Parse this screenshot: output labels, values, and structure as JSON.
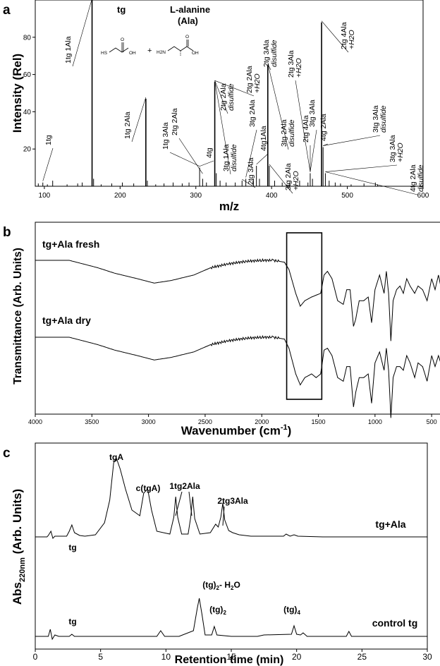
{
  "panels": {
    "a": {
      "letter": "a"
    },
    "b": {
      "letter": "b"
    },
    "c": {
      "letter": "c"
    }
  },
  "chart_data": [
    {
      "panel": "a",
      "type": "bar",
      "xlabel": "m/z",
      "ylabel": "Intensity (Rel)",
      "xlim": [
        88,
        600
      ],
      "ylim": [
        0,
        100
      ],
      "xticks": [
        100,
        200,
        300,
        400,
        500,
        600
      ],
      "yticks": [
        20,
        40,
        60,
        80
      ],
      "header": {
        "tg": "tg",
        "ala": "L-alanine",
        "ala_abbr": "(Ala)",
        "plus": "+"
      },
      "structure_labels": {
        "hs": "HS",
        "oh1": "OH",
        "o1": "O",
        "h2n": "H2N",
        "oh2": "OH",
        "o2": "O"
      },
      "peaks": [
        {
          "x": 92,
          "y": 1.5
        },
        {
          "x": 98,
          "y": 2
        },
        {
          "x": 104,
          "y": 1
        },
        {
          "x": 111,
          "y": 3
        },
        {
          "x": 130,
          "y": 1
        },
        {
          "x": 144,
          "y": 1.5
        },
        {
          "x": 150,
          "y": 2
        },
        {
          "x": 163,
          "y": 100
        },
        {
          "x": 165,
          "y": 4
        },
        {
          "x": 175,
          "y": 1
        },
        {
          "x": 189,
          "y": 1.5
        },
        {
          "x": 203,
          "y": 2
        },
        {
          "x": 218,
          "y": 1.5
        },
        {
          "x": 234,
          "y": 47
        },
        {
          "x": 236,
          "y": 3
        },
        {
          "x": 247,
          "y": 1
        },
        {
          "x": 258,
          "y": 1.5
        },
        {
          "x": 270,
          "y": 2
        },
        {
          "x": 282,
          "y": 1.5
        },
        {
          "x": 291,
          "y": 2
        },
        {
          "x": 305,
          "y": 10
        },
        {
          "x": 309,
          "y": 4
        },
        {
          "x": 314,
          "y": 2
        },
        {
          "x": 325,
          "y": 56
        },
        {
          "x": 327,
          "y": 7
        },
        {
          "x": 332,
          "y": 3
        },
        {
          "x": 340,
          "y": 2
        },
        {
          "x": 352,
          "y": 2
        },
        {
          "x": 361,
          "y": 3
        },
        {
          "x": 366,
          "y": 4
        },
        {
          "x": 376,
          "y": 4
        },
        {
          "x": 380,
          "y": 11
        },
        {
          "x": 384,
          "y": 4
        },
        {
          "x": 395,
          "y": 65
        },
        {
          "x": 397,
          "y": 11
        },
        {
          "x": 404,
          "y": 3
        },
        {
          "x": 414,
          "y": 2
        },
        {
          "x": 424,
          "y": 2
        },
        {
          "x": 437,
          "y": 3
        },
        {
          "x": 448,
          "y": 2
        },
        {
          "x": 451,
          "y": 7
        },
        {
          "x": 454,
          "y": 4
        },
        {
          "x": 466,
          "y": 88
        },
        {
          "x": 468,
          "y": 21
        },
        {
          "x": 471,
          "y": 7
        },
        {
          "x": 476,
          "y": 3
        },
        {
          "x": 484,
          "y": 2
        },
        {
          "x": 491,
          "y": 1.5
        },
        {
          "x": 505,
          "y": 1
        },
        {
          "x": 522,
          "y": 1.5
        },
        {
          "x": 537,
          "y": 2
        },
        {
          "x": 540,
          "y": 1
        }
      ],
      "annotations": [
        {
          "lines": [
            "1tg"
          ],
          "italic": [
            false
          ]
        },
        {
          "lines": [
            "1tg 1Ala"
          ],
          "italic": [
            false
          ]
        },
        {
          "lines": [
            "1tg 2Ala"
          ],
          "italic": [
            false
          ]
        },
        {
          "lines": [
            "1tg 3Ala"
          ],
          "italic": [
            false
          ]
        },
        {
          "lines": [
            "2tg 2Ala"
          ],
          "italic": [
            false
          ]
        },
        {
          "lines": [
            "4tg"
          ],
          "italic": [
            false
          ]
        },
        {
          "lines": [
            "3tg 1Ala",
            "disulfide"
          ],
          "italic": [
            false,
            true
          ]
        },
        {
          "lines": [
            "2tg 2Ala",
            "disulfide"
          ],
          "italic": [
            false,
            true
          ]
        },
        {
          "lines": [
            "2tg 2Ala",
            "+H2O"
          ],
          "italic": [
            false,
            true
          ]
        },
        {
          "lines": [
            "2tg 3Ala"
          ],
          "italic": [
            false
          ]
        },
        {
          "lines": [
            "3tg 2Ala"
          ],
          "italic": [
            false
          ]
        },
        {
          "lines": [
            "4tg1Ala"
          ],
          "italic": [
            false
          ]
        },
        {
          "lines": [
            "2tg 3Ala",
            "disulfide"
          ],
          "italic": [
            false,
            true
          ]
        },
        {
          "lines": [
            "3tg 2Ala",
            "disulfide"
          ],
          "italic": [
            false,
            true
          ]
        },
        {
          "lines": [
            "3tg 2Ala",
            "+H2O"
          ],
          "italic": [
            false,
            true
          ]
        },
        {
          "lines": [
            "2tg 3Ala",
            "+H2O"
          ],
          "italic": [
            false,
            true
          ]
        },
        {
          "lines": [
            "3tg 3Ala"
          ],
          "italic": [
            false
          ]
        },
        {
          "lines": [
            "2tg 4Ala"
          ],
          "italic": [
            false
          ]
        },
        {
          "lines": [
            "4tg 2Ala"
          ],
          "italic": [
            false
          ]
        },
        {
          "lines": [
            "2tg 4Ala",
            "+H2O"
          ],
          "italic": [
            false,
            true
          ]
        },
        {
          "lines": [
            "3tg 3Ala",
            "disulfide"
          ],
          "italic": [
            false,
            true
          ]
        },
        {
          "lines": [
            "3tg 3Ala",
            "+H2O"
          ],
          "italic": [
            false,
            true
          ]
        },
        {
          "lines": [
            "4tg 2Ala",
            "disulfide"
          ],
          "italic": [
            false,
            true
          ]
        }
      ]
    },
    {
      "panel": "b",
      "type": "line",
      "xlabel": "Wavenumber (cm-1)",
      "xlabel_main": "Wavenumber (cm",
      "xlabel_sup": "-1",
      "xlabel_close": ")",
      "ylabel": "Transmittance (Arb. Units)",
      "xlim": [
        4000,
        420
      ],
      "xreversed": true,
      "xticks": [
        4000,
        3500,
        3000,
        2500,
        2000,
        1500,
        1000,
        500
      ],
      "highlight_box": [
        1780,
        1470
      ],
      "series": [
        {
          "name": "tg+Ala fresh",
          "x": [
            4000,
            3700,
            3600,
            3450,
            3300,
            3100,
            2950,
            2800,
            2600,
            2450,
            2300,
            2150,
            2000,
            1900,
            1800,
            1760,
            1700,
            1660,
            1620,
            1560,
            1520,
            1480,
            1450,
            1420,
            1380,
            1330,
            1280,
            1250,
            1220,
            1190,
            1170,
            1140,
            1100,
            1060,
            1030,
            1000,
            960,
            920,
            900,
            880,
            860,
            840,
            810,
            780,
            750,
            720,
            690,
            650,
            620,
            580,
            540,
            500,
            470,
            440,
            420
          ],
          "y": [
            0,
            0,
            -0.8,
            -2,
            -3.5,
            -5,
            -6.2,
            -5.5,
            -4,
            -2,
            -1,
            -0.3,
            0,
            0,
            -0.5,
            -2.5,
            -9,
            -12.5,
            -11,
            -10,
            -9.5,
            -9,
            -4,
            -3,
            -5,
            -11,
            -12,
            -8,
            -8,
            -18,
            -16,
            -11,
            -11,
            -10,
            -17,
            -8,
            -4,
            -9,
            -3,
            -9,
            -22,
            -11,
            -8,
            -7,
            -9,
            -5,
            -7,
            -9,
            -7,
            -8,
            -11,
            -5,
            -8,
            -4,
            -7
          ]
        },
        {
          "name": "tg+Ala dry",
          "x": [
            4000,
            3700,
            3600,
            3450,
            3300,
            3100,
            2950,
            2800,
            2600,
            2450,
            2300,
            2150,
            2000,
            1900,
            1800,
            1760,
            1700,
            1660,
            1620,
            1560,
            1520,
            1480,
            1450,
            1420,
            1380,
            1330,
            1280,
            1250,
            1220,
            1190,
            1170,
            1140,
            1100,
            1060,
            1030,
            1000,
            960,
            920,
            900,
            880,
            860,
            840,
            810,
            780,
            750,
            720,
            690,
            650,
            620,
            580,
            540,
            500,
            470,
            440,
            420
          ],
          "y": [
            0,
            0,
            -0.8,
            -2,
            -3.5,
            -5,
            -6.2,
            -5.5,
            -4,
            -2,
            -1,
            -0.3,
            0,
            0,
            -0.5,
            -3,
            -10,
            -13,
            -11,
            -10,
            -11,
            -10,
            -3.5,
            -3,
            -5,
            -11,
            -12,
            -8,
            -8,
            -19,
            -15,
            -11,
            -11,
            -10,
            -18,
            -7,
            -4,
            -9,
            -3,
            -9,
            -22,
            -11,
            -8,
            -8,
            -9,
            -5,
            -7,
            -11,
            -7,
            -8,
            -12,
            -5,
            -8,
            -5,
            -7
          ]
        }
      ]
    },
    {
      "panel": "c",
      "type": "line",
      "xlabel": "Retention time (min)",
      "ylabel": "Abs220nm (Arb. Units)",
      "ylabel_main": "Abs",
      "ylabel_sub": "220nm",
      "ylabel_rest": " (Arb. Units)",
      "xlim": [
        0,
        30
      ],
      "xticks": [
        0,
        5,
        10,
        15,
        20,
        25,
        30
      ],
      "series": [
        {
          "name": "tg+Ala",
          "x": [
            0,
            0.9,
            1.0,
            1.2,
            1.35,
            1.5,
            2.4,
            2.6,
            2.8,
            3.0,
            3.2,
            3.4,
            3.8,
            4.6,
            5.3,
            5.7,
            6.0,
            6.2,
            6.5,
            6.9,
            7.4,
            8.0,
            8.3,
            8.6,
            8.9,
            9.3,
            10.3,
            10.6,
            10.75,
            10.9,
            11.2,
            11.7,
            11.9,
            12.05,
            12.2,
            12.6,
            13.4,
            13.8,
            14.0,
            14.2,
            14.35,
            14.5,
            14.8,
            15.1,
            15.6,
            16.5,
            17.5,
            19.0,
            19.2,
            19.5,
            19.8,
            20.1,
            22,
            24,
            26,
            28,
            30
          ],
          "y": [
            0,
            0,
            2,
            8,
            -2,
            1,
            1,
            8,
            17,
            6,
            4,
            2,
            1,
            3,
            20,
            52,
            105,
            112,
            96,
            68,
            38,
            30,
            62,
            68,
            38,
            8,
            4,
            28,
            57,
            28,
            4,
            4,
            28,
            57,
            26,
            4,
            6,
            18,
            14,
            28,
            48,
            24,
            9,
            6,
            3,
            1,
            1,
            1,
            4,
            1,
            3,
            1,
            0,
            0,
            0,
            0,
            0
          ]
        },
        {
          "name": "control tg",
          "x": [
            0,
            1.0,
            1.15,
            1.3,
            1.5,
            1.8,
            2.6,
            2.8,
            3.0,
            4,
            7,
            9.3,
            9.6,
            9.9,
            11,
            12.1,
            12.4,
            12.55,
            12.75,
            13.0,
            13.5,
            13.7,
            13.9,
            15,
            17,
            17.5,
            19.6,
            19.8,
            20.0,
            20.3,
            20.5,
            20.8,
            23.8,
            24.0,
            24.2,
            26,
            28,
            30
          ],
          "y": [
            0,
            0,
            10,
            -4,
            2,
            0,
            0,
            3,
            0,
            0,
            0,
            0,
            8,
            0,
            0,
            8,
            40,
            54,
            32,
            2,
            2,
            14,
            2,
            0,
            0,
            2,
            3,
            15,
            3,
            2,
            5,
            0,
            0,
            7,
            0,
            0,
            0,
            0
          ]
        }
      ],
      "peak_labels": {
        "tg_top": "tg",
        "tgA": "tgA",
        "ctgA": "c(tgA)",
        "tg1Ala": "1tg2Ala",
        "tg3Ala": "2tg3Ala",
        "tg_bottom": "tg",
        "tg2h2o_main": "(tg)",
        "tg2h2o_sub": "2",
        "tg2h2o_rest": "- H",
        "tg2h2o_sub2": "2",
        "tg2h2o_end": "O",
        "tg2_main": "(tg)",
        "tg2_sub": "2",
        "tg4_main": "(tg)",
        "tg4_sub": "4"
      }
    }
  ]
}
